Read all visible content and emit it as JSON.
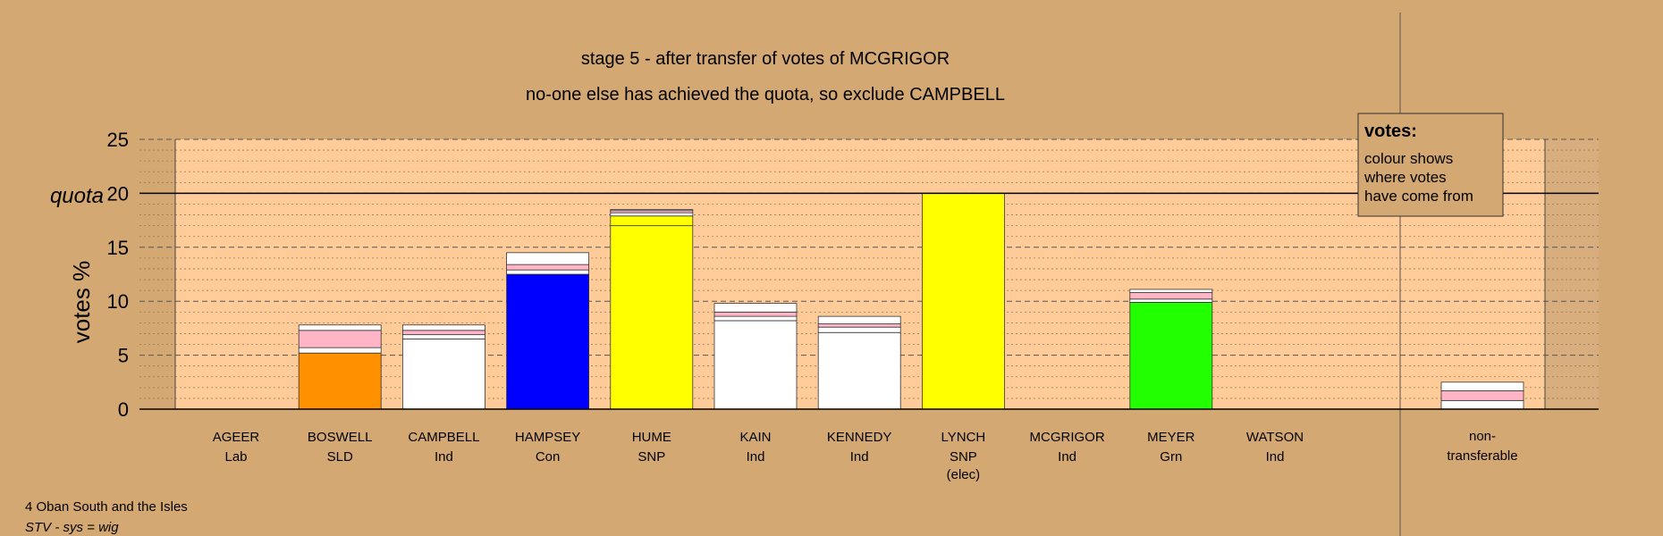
{
  "chart_data": {
    "type": "bar",
    "stacked": true,
    "title": "stage 5 - after transfer of votes of MCGRIGOR",
    "subtitle": "no-one else has achieved the quota, so exclude CAMPBELL",
    "ylabel": "votes %",
    "ylim": [
      0,
      25
    ],
    "yticks": [
      "0",
      "5",
      "10",
      "15",
      "20",
      "25"
    ],
    "quota": 20,
    "quota_label": "quota",
    "grid": "dashed major, dotted minor",
    "candidates": [
      {
        "name": "AGEER",
        "party": "Lab",
        "extra": "",
        "segments": []
      },
      {
        "name": "BOSWELL",
        "party": "SLD",
        "extra": "",
        "segments": [
          {
            "value": 5.2,
            "color": "#FF9000"
          },
          {
            "value": 0.5,
            "color": "#FFFFFF"
          },
          {
            "value": 1.6,
            "color": "#FFB5C5"
          },
          {
            "value": 0.5,
            "color": "#FFFFFF"
          }
        ]
      },
      {
        "name": "CAMPBELL",
        "party": "Ind",
        "extra": "",
        "segments": [
          {
            "value": 6.5,
            "color": "#FFFFFF"
          },
          {
            "value": 0.4,
            "color": "#FFFFFF"
          },
          {
            "value": 0.4,
            "color": "#FFB5C5"
          },
          {
            "value": 0.5,
            "color": "#FFFFFF"
          }
        ]
      },
      {
        "name": "HAMPSEY",
        "party": "Con",
        "extra": "",
        "segments": [
          {
            "value": 12.5,
            "color": "#0000FF"
          },
          {
            "value": 0.4,
            "color": "#FFFFFF"
          },
          {
            "value": 0.5,
            "color": "#FFB5C5"
          },
          {
            "value": 1.1,
            "color": "#FFFFFF"
          }
        ]
      },
      {
        "name": "HUME",
        "party": "SNP",
        "extra": "",
        "segments": [
          {
            "value": 17.0,
            "color": "#FFFF00"
          },
          {
            "value": 0.9,
            "color": "#FFFF00"
          },
          {
            "value": 0.3,
            "color": "#FFFFFF"
          },
          {
            "value": 0.2,
            "color": "#FFB5C5"
          },
          {
            "value": 0.1,
            "color": "#FFFFFF"
          }
        ]
      },
      {
        "name": "KAIN",
        "party": "Ind",
        "extra": "",
        "segments": [
          {
            "value": 8.2,
            "color": "#FFFFFF"
          },
          {
            "value": 0.4,
            "color": "#FFFFFF"
          },
          {
            "value": 0.4,
            "color": "#FFB5C5"
          },
          {
            "value": 0.8,
            "color": "#FFFFFF"
          }
        ]
      },
      {
        "name": "KENNEDY",
        "party": "Ind",
        "extra": "",
        "segments": [
          {
            "value": 7.1,
            "color": "#FFFFFF"
          },
          {
            "value": 0.5,
            "color": "#FFFFFF"
          },
          {
            "value": 0.3,
            "color": "#FFB5C5"
          },
          {
            "value": 0.7,
            "color": "#FFFFFF"
          }
        ]
      },
      {
        "name": "LYNCH",
        "party": "SNP",
        "extra": "(elec)",
        "segments": [
          {
            "value": 20.0,
            "color": "#FFFF00"
          }
        ]
      },
      {
        "name": "MCGRIGOR",
        "party": "Ind",
        "extra": "",
        "segments": []
      },
      {
        "name": "MEYER",
        "party": "Grn",
        "extra": "",
        "segments": [
          {
            "value": 9.9,
            "color": "#22FF00"
          },
          {
            "value": 0.3,
            "color": "#FFFFFF"
          },
          {
            "value": 0.6,
            "color": "#FFB5C5"
          },
          {
            "value": 0.3,
            "color": "#FFFFFF"
          }
        ]
      },
      {
        "name": "WATSON",
        "party": "Ind",
        "extra": "",
        "segments": []
      }
    ],
    "non_transferable": {
      "label_line1": "non-",
      "label_line2": "transferable",
      "segments": [
        {
          "value": 0.8,
          "color": "#FFFFFF"
        },
        {
          "value": 0.9,
          "color": "#FFB5C5"
        },
        {
          "value": 0.8,
          "color": "#FFFFFF"
        }
      ]
    },
    "legend": {
      "title": "votes:",
      "lines": [
        "colour shows",
        "where votes",
        "have come from"
      ],
      "placement": "top-right"
    }
  },
  "footer": {
    "line1": "4 Oban South and the Isles",
    "line2": "STV - sys = wig"
  }
}
